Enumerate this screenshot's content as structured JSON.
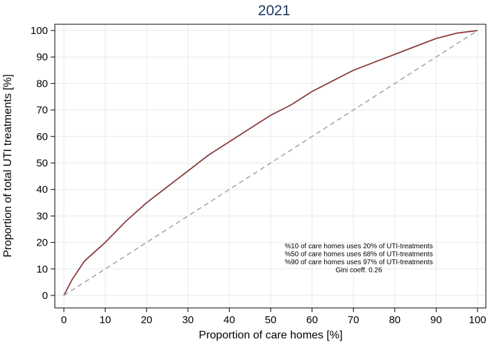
{
  "chart_data": {
    "type": "line",
    "title": "2021",
    "xlabel": "Proportion of care homes [%]",
    "ylabel": "Proportion of total UTI treatments [%]",
    "xlim": [
      0,
      100
    ],
    "ylim": [
      0,
      100
    ],
    "xticks": [
      "0",
      "10",
      "20",
      "30",
      "40",
      "50",
      "60",
      "70",
      "80",
      "90",
      "100"
    ],
    "yticks": [
      "0",
      "10",
      "20",
      "30",
      "40",
      "50",
      "60",
      "70",
      "80",
      "90",
      "100"
    ],
    "grid": true,
    "series": [
      {
        "style": "solid",
        "color": "#8b3a3a",
        "x": [
          0,
          2,
          5,
          10,
          15,
          20,
          25,
          30,
          35,
          40,
          45,
          50,
          55,
          60,
          65,
          70,
          75,
          80,
          85,
          90,
          95,
          100
        ],
        "y": [
          0,
          6,
          13,
          20,
          28,
          35,
          41,
          47,
          53,
          58,
          63,
          68,
          72,
          77,
          81,
          85,
          88,
          91,
          94,
          97,
          99,
          100
        ]
      },
      {
        "style": "dashed",
        "color": "#a6a6a6",
        "x": [
          0,
          100
        ],
        "y": [
          0,
          100
        ]
      }
    ],
    "annotations": [
      "%10 of care homes uses 20% of UTI-treatments",
      "%50 of care homes uses 68% of UTI-treatments",
      "%90 of care homes uses 97% of UTI-treatments",
      "Gini coeff. 0.26"
    ]
  }
}
